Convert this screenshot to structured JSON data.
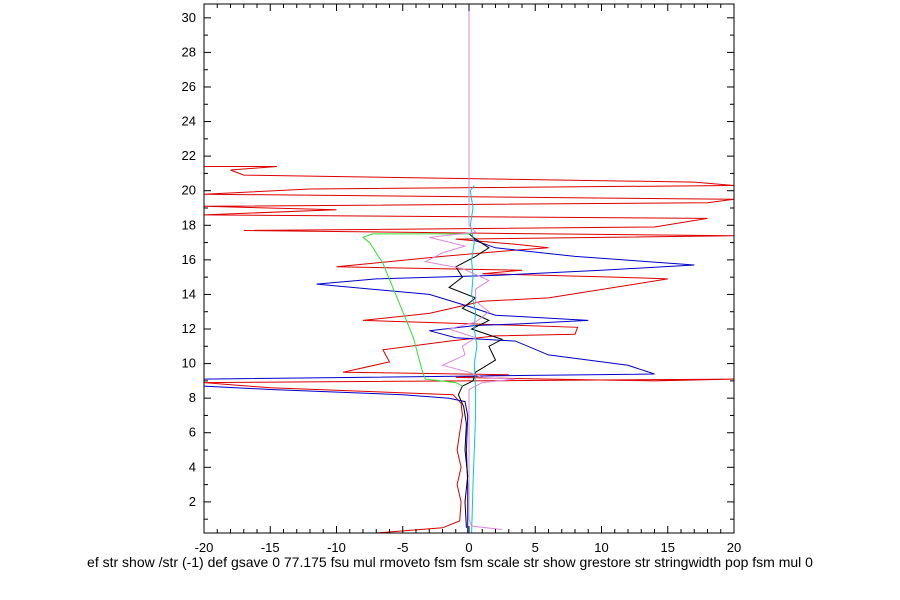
{
  "chart_data": {
    "type": "line",
    "xlabel": "ef str show /str (-1) def gsave 0 77.175 fsu mul rmoveto fsm fsm scale str show grestore str stringwidth pop fsm mul 0",
    "ylabel": "",
    "xlim": [
      -20,
      20
    ],
    "ylim": [
      0.2,
      30.8
    ],
    "x_ticks": [
      -20,
      -15,
      -10,
      -5,
      0,
      5,
      10,
      15,
      20
    ],
    "y_ticks": [
      2,
      4,
      6,
      8,
      10,
      12,
      14,
      16,
      18,
      20,
      22,
      24,
      26,
      28,
      30
    ],
    "grid": false,
    "series": [
      {
        "color": "#dd0000",
        "points": [
          [
            -7,
            0.2
          ],
          [
            -2,
            0.5
          ],
          [
            -0.7,
            0.9
          ],
          [
            -0.6,
            2
          ],
          [
            -0.9,
            3
          ],
          [
            -0.6,
            4
          ],
          [
            -0.9,
            5
          ],
          [
            -0.7,
            6
          ],
          [
            -0.5,
            7
          ],
          [
            -0.6,
            7.7
          ],
          [
            -1.2,
            8.2
          ],
          [
            -15,
            8.6
          ],
          [
            -20,
            8.9
          ],
          [
            20,
            9.1
          ],
          [
            14,
            9.0
          ],
          [
            -1,
            9.2
          ],
          [
            3,
            9.35
          ],
          [
            -9.5,
            9.5
          ],
          [
            -6,
            10.1
          ],
          [
            -6.5,
            10.8
          ],
          [
            -1.5,
            11.3
          ],
          [
            2,
            11.6
          ],
          [
            8,
            11.7
          ],
          [
            8.2,
            12.1
          ],
          [
            0,
            12.3
          ],
          [
            -8,
            12.5
          ],
          [
            -3,
            12.9
          ],
          [
            1,
            13.6
          ],
          [
            6,
            13.8
          ],
          [
            15,
            14.9
          ],
          [
            11,
            15.0
          ],
          [
            1,
            15.2
          ],
          [
            4,
            15.4
          ],
          [
            -10,
            15.6
          ],
          [
            -6,
            15.9
          ],
          [
            -2,
            16.2
          ],
          [
            2.5,
            16.5
          ],
          [
            6,
            16.7
          ],
          [
            3.5,
            16.9
          ],
          [
            -1,
            17.2
          ],
          [
            10,
            17.3
          ],
          [
            20,
            17.4
          ],
          [
            6,
            17.5
          ],
          [
            -17,
            17.7
          ],
          [
            14,
            17.9
          ],
          [
            18,
            18.4
          ],
          [
            -20,
            18.6
          ],
          [
            -10,
            18.9
          ],
          [
            -20,
            19.1
          ],
          [
            18,
            19.3
          ],
          [
            20,
            19.5
          ],
          [
            -20,
            19.8
          ],
          [
            -12,
            20.1
          ],
          [
            20,
            20.3
          ],
          [
            17,
            20.5
          ],
          [
            -17,
            20.9
          ],
          [
            -18,
            21.2
          ],
          [
            -14.5,
            21.4
          ],
          [
            -20,
            21.4
          ]
        ]
      },
      {
        "color": "#dd0000",
        "points": [
          [
            -20,
            30.8
          ],
          [
            -8,
            30.8
          ]
        ]
      },
      {
        "color": "#0000cc",
        "points": [
          [
            -0.1,
            0.2
          ],
          [
            -0.1,
            3
          ],
          [
            -0.2,
            5
          ],
          [
            -0.1,
            7
          ],
          [
            -0.3,
            7.8
          ],
          [
            -1.5,
            8
          ],
          [
            -5,
            8.2
          ],
          [
            -15,
            8.5
          ],
          [
            -20,
            8.7
          ],
          [
            -20,
            9.1
          ],
          [
            14,
            9.4
          ],
          [
            12,
            9.9
          ],
          [
            6,
            10.5
          ],
          [
            3.5,
            11.3
          ],
          [
            -1,
            11.5
          ],
          [
            -3,
            11.9
          ],
          [
            0.5,
            12.2
          ],
          [
            4,
            12.3
          ],
          [
            9,
            12.5
          ],
          [
            2,
            12.8
          ],
          [
            0,
            13.3
          ],
          [
            -3,
            14.0
          ],
          [
            -11.5,
            14.6
          ],
          [
            -7,
            14.9
          ],
          [
            2,
            15.1
          ],
          [
            10,
            15.4
          ],
          [
            17,
            15.7
          ],
          [
            8,
            16.2
          ],
          [
            2,
            16.7
          ],
          [
            0.5,
            17.1
          ],
          [
            0.2,
            17.4
          ]
        ]
      },
      {
        "color": "#000000",
        "points": [
          [
            -0.2,
            0.5
          ],
          [
            -0.3,
            2
          ],
          [
            -0.1,
            3.5
          ],
          [
            -0.3,
            5
          ],
          [
            -0.2,
            6.5
          ],
          [
            -0.4,
            7.5
          ],
          [
            -0.8,
            8.2
          ],
          [
            -0.5,
            8.7
          ],
          [
            0.3,
            9.0
          ],
          [
            0.5,
            9.5
          ],
          [
            2,
            10.2
          ],
          [
            1.5,
            11.0
          ],
          [
            2.5,
            11.4
          ],
          [
            0.2,
            12.0
          ],
          [
            1.5,
            12.5
          ],
          [
            -0.5,
            13.2
          ],
          [
            0.5,
            13.8
          ],
          [
            -1.5,
            14.4
          ],
          [
            -0.5,
            15.0
          ],
          [
            -1,
            15.6
          ],
          [
            0.5,
            16.2
          ],
          [
            1.5,
            16.7
          ],
          [
            0.5,
            17.2
          ],
          [
            0,
            17.5
          ]
        ]
      },
      {
        "color": "#33dd33",
        "points": [
          [
            -0.5,
            8.7
          ],
          [
            -1,
            8.9
          ],
          [
            -3.3,
            9.1
          ],
          [
            -3.5,
            9.5
          ],
          [
            -4.2,
            11.5
          ],
          [
            -5,
            13
          ],
          [
            -5.8,
            14.5
          ],
          [
            -6.5,
            15.8
          ],
          [
            -7.5,
            17
          ],
          [
            -8,
            17.3
          ],
          [
            -7.3,
            17.5
          ],
          [
            -0.5,
            17.5
          ],
          [
            0.3,
            17.5
          ]
        ]
      },
      {
        "color": "#00cccc",
        "points": [
          [
            0.2,
            0.2
          ],
          [
            0.3,
            3
          ],
          [
            0.4,
            5
          ],
          [
            0.5,
            7
          ],
          [
            0.5,
            8.5
          ],
          [
            0.4,
            10
          ],
          [
            0.6,
            11
          ],
          [
            0.4,
            12
          ],
          [
            0.5,
            13
          ],
          [
            0.2,
            14
          ],
          [
            0.3,
            15
          ],
          [
            0.2,
            16
          ],
          [
            0.4,
            17
          ],
          [
            0.1,
            18
          ],
          [
            0.3,
            19
          ],
          [
            0.1,
            20
          ],
          [
            0.4,
            20.3
          ]
        ]
      },
      {
        "color": "#dd88dd",
        "points": [
          [
            2.5,
            0.4
          ],
          [
            0.2,
            0.6
          ],
          [
            0,
            1
          ],
          [
            0,
            8.5
          ],
          [
            1,
            8.9
          ],
          [
            3.5,
            9.1
          ],
          [
            1,
            9.2
          ],
          [
            0,
            9.5
          ],
          [
            -2,
            9.9
          ],
          [
            -0.3,
            10.5
          ],
          [
            -0.5,
            11.0
          ],
          [
            0.5,
            11.5
          ],
          [
            -1.5,
            12.0
          ],
          [
            0.5,
            12.4
          ],
          [
            1.5,
            13.0
          ],
          [
            0.5,
            13.6
          ],
          [
            0.5,
            14.3
          ],
          [
            1.5,
            14.8
          ],
          [
            -0.5,
            15.5
          ],
          [
            -3.3,
            15.9
          ],
          [
            -2,
            16.4
          ],
          [
            -0.3,
            16.8
          ],
          [
            -3,
            17.3
          ],
          [
            0.5,
            17.6
          ],
          [
            0,
            18
          ],
          [
            0,
            30.8
          ]
        ]
      }
    ]
  }
}
